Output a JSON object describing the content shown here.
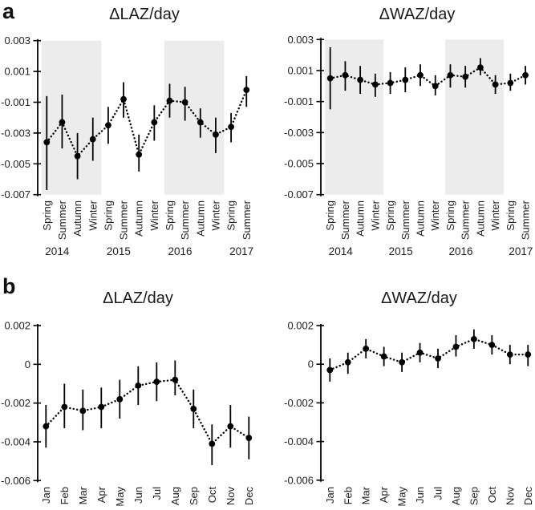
{
  "figure": {
    "panels": [
      {
        "label": "a",
        "description": "seasonal change by year"
      },
      {
        "label": "b",
        "description": "monthly change"
      }
    ]
  },
  "colors": {
    "band": "#ececec",
    "data": "#000000",
    "text": "#1f1f1f"
  },
  "chart_data": [
    {
      "id": "a-laz",
      "panel": "a",
      "type": "scatter",
      "title": "ΔLAZ/day",
      "xlabel": "",
      "ylabel": "",
      "ylim": [
        -0.007,
        0.003
      ],
      "yticks": [
        0.003,
        0.001,
        -0.001,
        -0.003,
        -0.005,
        -0.007
      ],
      "ytick_labels": [
        "0.003",
        "0.001",
        "-0.001",
        "-0.003",
        "-0.005",
        "-0.007"
      ],
      "grid": false,
      "legend": "none",
      "line_style": "dotted",
      "marker": "filled-circle",
      "error_bars": true,
      "categories": [
        "Spring",
        "Summer",
        "Autumn",
        "Winter",
        "Spring",
        "Summer",
        "Autumn",
        "Winter",
        "Spring",
        "Summer",
        "Autumn",
        "Winter",
        "Spring",
        "Summer"
      ],
      "year_groups": [
        {
          "label": "2014",
          "start_index": 0
        },
        {
          "label": "2015",
          "start_index": 4
        },
        {
          "label": "2016",
          "start_index": 8
        },
        {
          "label": "2017",
          "start_index": 12
        }
      ],
      "shaded_bands": [
        [
          0,
          3
        ],
        [
          8,
          11
        ]
      ],
      "series": [
        {
          "name": "mean",
          "values": [
            -0.0036,
            -0.0023,
            -0.0045,
            -0.0034,
            -0.0025,
            -0.0008,
            -0.0044,
            -0.0023,
            -0.0009,
            -0.001,
            -0.0023,
            -0.0031,
            -0.0026,
            -0.0002
          ],
          "ci_high": [
            -0.0006,
            -0.0005,
            -0.003,
            -0.002,
            -0.0013,
            0.0003,
            -0.0031,
            -0.0012,
            0.0002,
            0.0,
            -0.0014,
            -0.002,
            -0.0017,
            0.0007
          ],
          "ci_low": [
            -0.0067,
            -0.004,
            -0.006,
            -0.0048,
            -0.0037,
            -0.002,
            -0.0055,
            -0.0035,
            -0.002,
            -0.0022,
            -0.0033,
            -0.0043,
            -0.0036,
            -0.0013
          ]
        }
      ]
    },
    {
      "id": "a-waz",
      "panel": "a",
      "type": "scatter",
      "title": "ΔWAZ/day",
      "xlabel": "",
      "ylabel": "",
      "ylim": [
        -0.007,
        0.003
      ],
      "yticks": [
        0.003,
        0.001,
        -0.001,
        -0.003,
        -0.005,
        -0.007
      ],
      "ytick_labels": [
        "0.003",
        "0.001",
        "-0.001",
        "-0.003",
        "-0.005",
        "-0.007"
      ],
      "grid": false,
      "legend": "none",
      "line_style": "dotted",
      "marker": "filled-circle",
      "error_bars": true,
      "categories": [
        "Spring",
        "Summer",
        "Autumn",
        "Winter",
        "Spring",
        "Summer",
        "Autumn",
        "Winter",
        "Spring",
        "Summer",
        "Autumn",
        "Winter",
        "Spring",
        "Summer"
      ],
      "year_groups": [
        {
          "label": "2014",
          "start_index": 0
        },
        {
          "label": "2015",
          "start_index": 4
        },
        {
          "label": "2016",
          "start_index": 8
        },
        {
          "label": "2017",
          "start_index": 12
        }
      ],
      "shaded_bands": [
        [
          0,
          3
        ],
        [
          8,
          11
        ]
      ],
      "series": [
        {
          "name": "mean",
          "values": [
            0.0005,
            0.0007,
            0.0004,
            0.0001,
            0.0002,
            0.0004,
            0.0007,
            0.0,
            0.0007,
            0.0006,
            0.0012,
            0.0001,
            0.0002,
            0.0007
          ],
          "ci_high": [
            0.0025,
            0.0016,
            0.0013,
            0.0008,
            0.0009,
            0.0012,
            0.0014,
            0.0007,
            0.0014,
            0.0013,
            0.0018,
            0.0007,
            0.0008,
            0.0013
          ],
          "ci_low": [
            -0.0015,
            -0.0003,
            -0.0005,
            -0.0007,
            -0.0005,
            -0.0004,
            0.0,
            -0.0006,
            -0.0001,
            -0.0001,
            0.0007,
            -0.0005,
            -0.0003,
            0.0001
          ]
        }
      ]
    },
    {
      "id": "b-laz",
      "panel": "b",
      "type": "scatter",
      "title": "ΔLAZ/day",
      "xlabel": "",
      "ylabel": "",
      "ylim": [
        -0.006,
        0.002
      ],
      "yticks": [
        0.002,
        0,
        -0.002,
        -0.004,
        -0.006
      ],
      "ytick_labels": [
        "0.002",
        "0",
        "-0.002",
        "-0.004",
        "-0.006"
      ],
      "grid": false,
      "legend": "none",
      "line_style": "dotted",
      "marker": "filled-circle",
      "error_bars": true,
      "categories": [
        "Jan",
        "Feb",
        "Mar",
        "Apr",
        "May",
        "Jun",
        "Jul",
        "Aug",
        "Sep",
        "Oct",
        "Nov",
        "Dec"
      ],
      "year_groups": [],
      "shaded_bands": [],
      "series": [
        {
          "name": "mean",
          "values": [
            -0.0032,
            -0.0022,
            -0.0024,
            -0.0022,
            -0.0018,
            -0.0011,
            -0.0009,
            -0.0008,
            -0.0023,
            -0.0041,
            -0.0032,
            -0.0038
          ],
          "ci_high": [
            -0.0021,
            -0.001,
            -0.0013,
            -0.0012,
            -0.0008,
            -0.0001,
            0.0001,
            0.0002,
            -0.0013,
            -0.0031,
            -0.0021,
            -0.0027
          ],
          "ci_low": [
            -0.0043,
            -0.0033,
            -0.0034,
            -0.0033,
            -0.0028,
            -0.0021,
            -0.0019,
            -0.0016,
            -0.0033,
            -0.0052,
            -0.0043,
            -0.0049
          ]
        }
      ]
    },
    {
      "id": "b-waz",
      "panel": "b",
      "type": "scatter",
      "title": "ΔWAZ/day",
      "xlabel": "",
      "ylabel": "",
      "ylim": [
        -0.006,
        0.002
      ],
      "yticks": [
        0.002,
        0,
        -0.002,
        -0.004,
        -0.006
      ],
      "ytick_labels": [
        "0.002",
        "0",
        "-0.002",
        "-0.004",
        "-0.006"
      ],
      "grid": false,
      "legend": "none",
      "line_style": "dotted",
      "marker": "filled-circle",
      "error_bars": true,
      "categories": [
        "Jan",
        "Feb",
        "Mar",
        "Apr",
        "May",
        "Jun",
        "Jul",
        "Aug",
        "Sep",
        "Oct",
        "Nov",
        "Dec"
      ],
      "year_groups": [],
      "shaded_bands": [],
      "series": [
        {
          "name": "mean",
          "values": [
            -0.0003,
            0.0001,
            0.0008,
            0.0004,
            0.0001,
            0.0006,
            0.0003,
            0.0009,
            0.0013,
            0.001,
            0.0005,
            0.0005
          ],
          "ci_high": [
            0.0003,
            0.0006,
            0.0013,
            0.0009,
            0.0006,
            0.0011,
            0.0008,
            0.0015,
            0.0018,
            0.0015,
            0.001,
            0.001
          ],
          "ci_low": [
            -0.0009,
            -0.0005,
            0.0003,
            -0.0001,
            -0.0004,
            0.0001,
            -0.0002,
            0.0004,
            0.0008,
            0.0005,
            0.0,
            -0.0001
          ]
        }
      ]
    }
  ]
}
